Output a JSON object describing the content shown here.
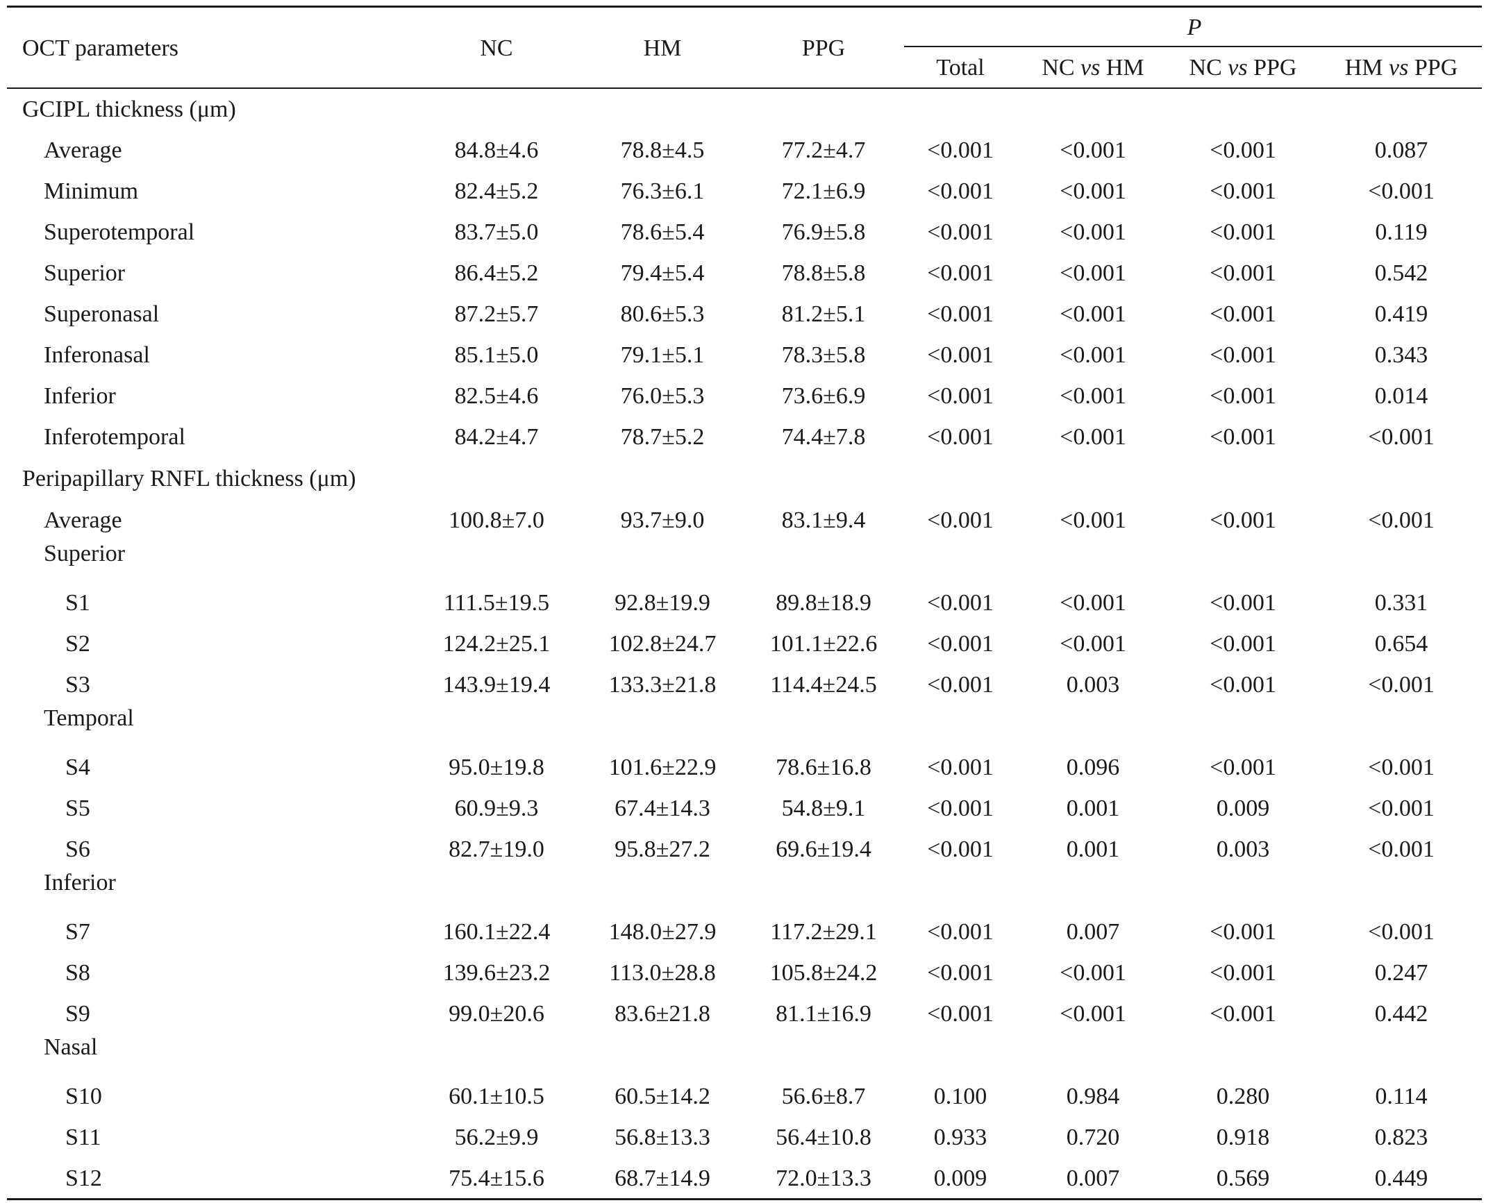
{
  "header": {
    "param": "OCT parameters",
    "nc": "NC",
    "hm": "HM",
    "ppg": "PPG",
    "p": "P",
    "total": "Total",
    "nc_hm": {
      "a": "NC ",
      "vs": "vs",
      "b": " HM"
    },
    "nc_ppg": {
      "a": "NC ",
      "vs": "vs",
      "b": " PPG"
    },
    "hm_ppg": {
      "a": "HM ",
      "vs": "vs",
      "b": " PPG"
    }
  },
  "sections": [
    {
      "title": "GCIPL thickness (μm)",
      "rows": [
        {
          "label": "Average",
          "nc": "84.8±4.6",
          "hm": "78.8±4.5",
          "ppg": "77.2±4.7",
          "total": "<0.001",
          "nc_hm": "<0.001",
          "nc_ppg": "<0.001",
          "hm_ppg": "0.087"
        },
        {
          "label": "Minimum",
          "nc": "82.4±5.2",
          "hm": "76.3±6.1",
          "ppg": "72.1±6.9",
          "total": "<0.001",
          "nc_hm": "<0.001",
          "nc_ppg": "<0.001",
          "hm_ppg": "<0.001"
        },
        {
          "label": "Superotemporal",
          "nc": "83.7±5.0",
          "hm": "78.6±5.4",
          "ppg": "76.9±5.8",
          "total": "<0.001",
          "nc_hm": "<0.001",
          "nc_ppg": "<0.001",
          "hm_ppg": "0.119"
        },
        {
          "label": "Superior",
          "nc": "86.4±5.2",
          "hm": "79.4±5.4",
          "ppg": "78.8±5.8",
          "total": "<0.001",
          "nc_hm": "<0.001",
          "nc_ppg": "<0.001",
          "hm_ppg": "0.542"
        },
        {
          "label": "Superonasal",
          "nc": "87.2±5.7",
          "hm": "80.6±5.3",
          "ppg": "81.2±5.1",
          "total": "<0.001",
          "nc_hm": "<0.001",
          "nc_ppg": "<0.001",
          "hm_ppg": "0.419"
        },
        {
          "label": "Inferonasal",
          "nc": "85.1±5.0",
          "hm": "79.1±5.1",
          "ppg": "78.3±5.8",
          "total": "<0.001",
          "nc_hm": "<0.001",
          "nc_ppg": "<0.001",
          "hm_ppg": "0.343"
        },
        {
          "label": "Inferior",
          "nc": "82.5±4.6",
          "hm": "76.0±5.3",
          "ppg": "73.6±6.9",
          "total": "<0.001",
          "nc_hm": "<0.001",
          "nc_ppg": "<0.001",
          "hm_ppg": "0.014"
        },
        {
          "label": "Inferotemporal",
          "nc": "84.2±4.7",
          "hm": "78.7±5.2",
          "ppg": "74.4±7.8",
          "total": "<0.001",
          "nc_hm": "<0.001",
          "nc_ppg": "<0.001",
          "hm_ppg": "<0.001"
        }
      ]
    },
    {
      "title": "Peripapillary RNFL thickness (μm)",
      "rows": [
        {
          "label": "Average",
          "nc": "100.8±7.0",
          "hm": "93.7±9.0",
          "ppg": "83.1±9.4",
          "total": "<0.001",
          "nc_hm": "<0.001",
          "nc_ppg": "<0.001",
          "hm_ppg": "<0.001"
        }
      ],
      "groups": [
        {
          "title": "Superior",
          "rows": [
            {
              "label": "S1",
              "nc": "111.5±19.5",
              "hm": "92.8±19.9",
              "ppg": "89.8±18.9",
              "total": "<0.001",
              "nc_hm": "<0.001",
              "nc_ppg": "<0.001",
              "hm_ppg": "0.331"
            },
            {
              "label": "S2",
              "nc": "124.2±25.1",
              "hm": "102.8±24.7",
              "ppg": "101.1±22.6",
              "total": "<0.001",
              "nc_hm": "<0.001",
              "nc_ppg": "<0.001",
              "hm_ppg": "0.654"
            },
            {
              "label": "S3",
              "nc": "143.9±19.4",
              "hm": "133.3±21.8",
              "ppg": "114.4±24.5",
              "total": "<0.001",
              "nc_hm": "0.003",
              "nc_ppg": "<0.001",
              "hm_ppg": "<0.001"
            }
          ]
        },
        {
          "title": "Temporal",
          "rows": [
            {
              "label": "S4",
              "nc": "95.0±19.8",
              "hm": "101.6±22.9",
              "ppg": "78.6±16.8",
              "total": "<0.001",
              "nc_hm": "0.096",
              "nc_ppg": "<0.001",
              "hm_ppg": "<0.001"
            },
            {
              "label": "S5",
              "nc": "60.9±9.3",
              "hm": "67.4±14.3",
              "ppg": "54.8±9.1",
              "total": "<0.001",
              "nc_hm": "0.001",
              "nc_ppg": "0.009",
              "hm_ppg": "<0.001"
            },
            {
              "label": "S6",
              "nc": "82.7±19.0",
              "hm": "95.8±27.2",
              "ppg": "69.6±19.4",
              "total": "<0.001",
              "nc_hm": "0.001",
              "nc_ppg": "0.003",
              "hm_ppg": "<0.001"
            }
          ]
        },
        {
          "title": "Inferior",
          "rows": [
            {
              "label": "S7",
              "nc": "160.1±22.4",
              "hm": "148.0±27.9",
              "ppg": "117.2±29.1",
              "total": "<0.001",
              "nc_hm": "0.007",
              "nc_ppg": "<0.001",
              "hm_ppg": "<0.001"
            },
            {
              "label": "S8",
              "nc": "139.6±23.2",
              "hm": "113.0±28.8",
              "ppg": "105.8±24.2",
              "total": "<0.001",
              "nc_hm": "<0.001",
              "nc_ppg": "<0.001",
              "hm_ppg": "0.247"
            },
            {
              "label": "S9",
              "nc": "99.0±20.6",
              "hm": "83.6±21.8",
              "ppg": "81.1±16.9",
              "total": "<0.001",
              "nc_hm": "<0.001",
              "nc_ppg": "<0.001",
              "hm_ppg": "0.442"
            }
          ]
        },
        {
          "title": "Nasal",
          "rows": [
            {
              "label": "S10",
              "nc": "60.1±10.5",
              "hm": "60.5±14.2",
              "ppg": "56.6±8.7",
              "total": "0.100",
              "nc_hm": "0.984",
              "nc_ppg": "0.280",
              "hm_ppg": "0.114"
            },
            {
              "label": "S11",
              "nc": "56.2±9.9",
              "hm": "56.8±13.3",
              "ppg": "56.4±10.8",
              "total": "0.933",
              "nc_hm": "0.720",
              "nc_ppg": "0.918",
              "hm_ppg": "0.823"
            },
            {
              "label": "S12",
              "nc": "75.4±15.6",
              "hm": "68.7±14.9",
              "ppg": "72.0±13.3",
              "total": "0.009",
              "nc_hm": "0.007",
              "nc_ppg": "0.569",
              "hm_ppg": "0.449"
            }
          ]
        }
      ]
    }
  ]
}
